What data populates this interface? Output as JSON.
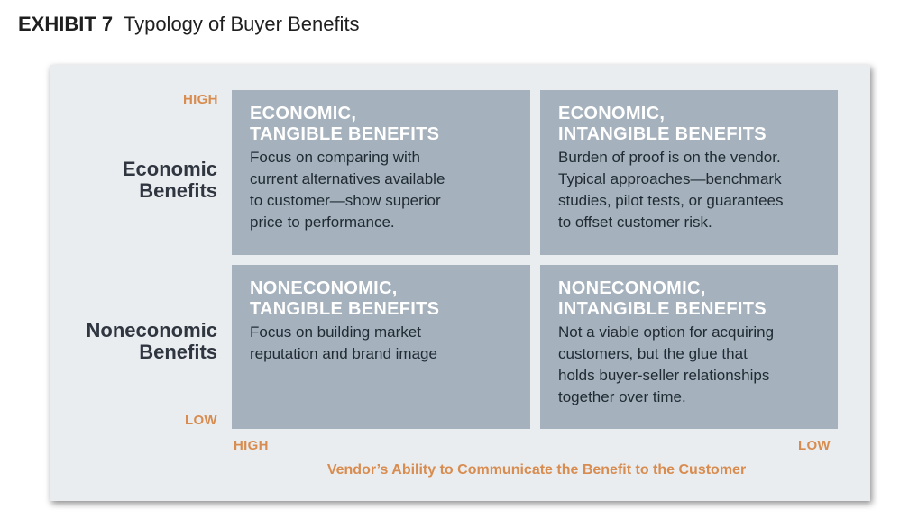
{
  "header": {
    "exhibit": "EXHIBIT 7",
    "title": "Typology of Buyer Benefits"
  },
  "axes": {
    "y_high": "HIGH",
    "y_low": "LOW",
    "x_high": "HIGH",
    "x_low": "LOW",
    "x_title": "Vendor’s Ability to Communicate the Benefit to the Customer"
  },
  "rows": [
    {
      "line1": "Economic",
      "line2": "Benefits"
    },
    {
      "line1": "Noneconomic",
      "line2": "Benefits"
    }
  ],
  "quadrants": [
    {
      "title_line1": "ECONOMIC,",
      "title_line2": "TANGIBLE BENEFITS",
      "body": [
        "Focus on comparing with",
        "current alternatives available",
        "to customer—show superior",
        "price to performance."
      ]
    },
    {
      "title_line1": "ECONOMIC,",
      "title_line2": "INTANGIBLE BENEFITS",
      "body": [
        "Burden of proof is on the vendor.",
        "Typical approaches—benchmark",
        "studies, pilot tests, or guarantees",
        "to offset customer risk."
      ]
    },
    {
      "title_line1": "NONECONOMIC,",
      "title_line2": "TANGIBLE BENEFITS",
      "body": [
        "Focus on building market",
        "reputation and brand image"
      ]
    },
    {
      "title_line1": "NONECONOMIC,",
      "title_line2": "INTANGIBLE BENEFITS",
      "body": [
        "Not a viable option for acquiring",
        "customers, but the glue that",
        "holds buyer-seller relationships",
        "together over time."
      ]
    }
  ],
  "colors": {
    "accent": "#d88c4f",
    "quadrant_fill": "#a5b1bc",
    "panel_bg": "#eaedf0",
    "quadrant_title": "#ffffff"
  }
}
